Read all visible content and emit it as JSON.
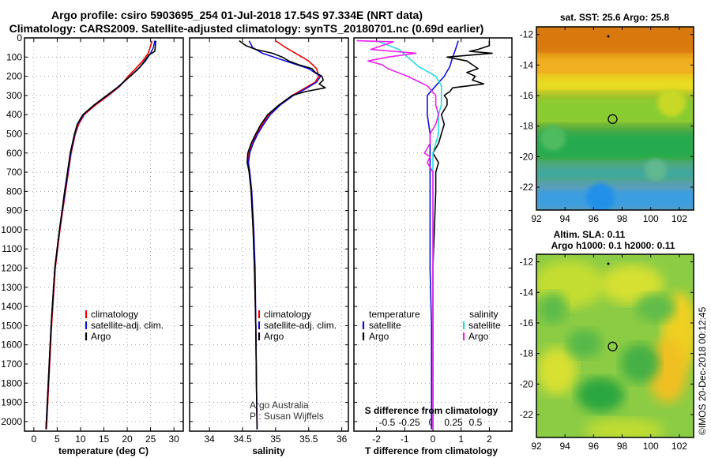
{
  "header": {
    "title_line1": "Argo profile: csiro 5903695_254 01-Jul-2018 17.54S 97.334E (NRT data)",
    "title_line2": "Climatology: CARS2009. Satellite-adjusted climatology: synTS_20180701.nc (0.69d earlier)"
  },
  "colors": {
    "climatology": "#ee0000",
    "satellite": "#1010dd",
    "argo": "#000000",
    "s_satellite": "#22dddd",
    "s_argo": "#ee22ee"
  },
  "depth_axis": {
    "ticks": [
      "0",
      "100",
      "200",
      "300",
      "400",
      "500",
      "600",
      "700",
      "800",
      "900",
      "1000",
      "1100",
      "1200",
      "1300",
      "1400",
      "1500",
      "1600",
      "1700",
      "1800",
      "1900",
      "2000"
    ],
    "range": [
      0,
      2050
    ]
  },
  "chart_data": [
    {
      "type": "line",
      "name": "temperature",
      "xlabel": "temperature (deg C)",
      "ylabel": "",
      "xlim": [
        -2,
        32
      ],
      "ylim": [
        0,
        2050
      ],
      "xticks": [
        "0",
        "5",
        "10",
        "15",
        "20",
        "25",
        "30"
      ],
      "xtick_values": [
        0,
        5,
        10,
        15,
        20,
        25,
        30
      ],
      "legend": [
        "climatology",
        "satellite-adj. clim.",
        "Argo"
      ],
      "series": [
        {
          "name": "climatology",
          "depth": [
            15,
            50,
            80,
            120,
            160,
            200,
            250,
            300,
            350,
            400,
            450,
            500,
            600,
            650,
            700,
            800,
            1000,
            1200,
            1500,
            1800,
            2040
          ],
          "values": [
            25.3,
            24.9,
            24.5,
            23.3,
            21.8,
            20.2,
            18.5,
            16.0,
            13.2,
            10.8,
            9.6,
            8.9,
            8.0,
            7.7,
            7.4,
            6.8,
            5.6,
            4.6,
            3.8,
            3.2,
            2.7
          ]
        },
        {
          "name": "satellite-adj. clim.",
          "depth": [
            15,
            50,
            80,
            120,
            160,
            200,
            250,
            300,
            350,
            400,
            450,
            500,
            600,
            650,
            700,
            800,
            1000,
            1200,
            1500,
            1800,
            2040
          ],
          "values": [
            25.9,
            25.6,
            25.0,
            23.9,
            22.4,
            20.6,
            18.4,
            15.7,
            12.9,
            10.6,
            9.4,
            8.8,
            7.9,
            7.6,
            7.3,
            6.7,
            5.5,
            4.5,
            3.7,
            3.1,
            2.6
          ]
        },
        {
          "name": "Argo",
          "depth": [
            15,
            50,
            70,
            90,
            110,
            130,
            150,
            170,
            200,
            230,
            260,
            300,
            350,
            400,
            450,
            500,
            600,
            650,
            700,
            800,
            1000,
            1200,
            1500,
            1800,
            2040
          ],
          "values": [
            26.1,
            26.0,
            25.9,
            24.6,
            24.0,
            23.4,
            22.8,
            22.0,
            20.6,
            19.2,
            17.8,
            15.6,
            12.9,
            10.5,
            9.3,
            8.7,
            7.8,
            7.5,
            7.2,
            6.6,
            5.5,
            4.5,
            3.7,
            3.1,
            2.6
          ]
        }
      ]
    },
    {
      "type": "line",
      "name": "salinity",
      "xlabel": "salinity",
      "ylabel": "",
      "xlim": [
        33.7,
        36.1
      ],
      "ylim": [
        0,
        2050
      ],
      "xticks": [
        "34",
        "34.5",
        "35",
        "35.5",
        "36"
      ],
      "xtick_values": [
        34,
        34.5,
        35,
        35.5,
        36
      ],
      "legend": [
        "climatology",
        "satellite-adj. clim.",
        "Argo"
      ],
      "annotations": [
        "Argo Australia",
        "PI: Susan Wijffels"
      ],
      "series": [
        {
          "name": "climatology",
          "depth": [
            15,
            50,
            80,
            120,
            160,
            200,
            230,
            260,
            300,
            350,
            400,
            450,
            500,
            550,
            600,
            650,
            700,
            800,
            1000,
            1200,
            1500,
            1800,
            2040
          ],
          "values": [
            35.0,
            35.15,
            35.3,
            35.5,
            35.62,
            35.65,
            35.6,
            35.45,
            35.25,
            35.05,
            34.9,
            34.8,
            34.72,
            34.65,
            34.6,
            34.58,
            34.6,
            34.63,
            34.66,
            34.68,
            34.7,
            34.71,
            34.72
          ]
        },
        {
          "name": "satellite-adj. clim.",
          "depth": [
            15,
            50,
            80,
            120,
            160,
            200,
            230,
            260,
            300,
            350,
            400,
            450,
            500,
            550,
            600,
            650,
            700,
            800,
            1000,
            1200,
            1500,
            1800,
            2040
          ],
          "values": [
            34.6,
            34.65,
            34.8,
            35.15,
            35.5,
            35.68,
            35.62,
            35.48,
            35.27,
            35.07,
            34.92,
            34.82,
            34.73,
            34.66,
            34.61,
            34.59,
            34.61,
            34.64,
            34.67,
            34.69,
            34.7,
            34.71,
            34.72
          ]
        },
        {
          "name": "Argo",
          "depth": [
            15,
            40,
            60,
            80,
            100,
            120,
            140,
            160,
            180,
            200,
            220,
            240,
            260,
            280,
            300,
            350,
            400,
            450,
            500,
            550,
            600,
            650,
            700,
            800,
            1000,
            1200,
            1500,
            1800,
            2040
          ],
          "values": [
            34.45,
            34.55,
            34.7,
            34.95,
            35.1,
            35.2,
            35.35,
            35.55,
            35.6,
            35.7,
            35.72,
            35.66,
            35.75,
            35.45,
            35.25,
            35.05,
            34.88,
            34.78,
            34.7,
            34.63,
            34.58,
            34.57,
            34.6,
            34.63,
            34.66,
            34.68,
            34.7,
            34.71,
            34.72
          ]
        }
      ]
    },
    {
      "type": "line",
      "name": "differences",
      "xlabel": "T difference from climatology",
      "ylabel": "",
      "xlim": [
        -2.8,
        2.8
      ],
      "ylim": [
        0,
        2050
      ],
      "xticks": [
        "-2",
        "-1",
        "0",
        "1",
        "2"
      ],
      "xtick_values": [
        -2,
        -1,
        0,
        1,
        2
      ],
      "top_label": "S difference from climatology",
      "s_ticks": [
        "-0.5",
        "-0.25",
        "0",
        "0.25",
        "0.5"
      ],
      "s_tick_values": [
        -0.5,
        -0.25,
        0,
        0.25,
        0.5
      ],
      "legend_left": {
        "heading": "temperature",
        "items": [
          "satellite",
          "Argo"
        ]
      },
      "legend_right": {
        "heading": "salinity",
        "items": [
          "satellite",
          "Argo"
        ]
      },
      "series": [
        {
          "name": "temperature satellite",
          "depth": [
            15,
            60,
            100,
            150,
            200,
            250,
            300,
            350,
            400,
            500,
            600,
            700,
            900,
            1200,
            1500,
            1800,
            2040
          ],
          "values": [
            0.9,
            0.8,
            0.7,
            0.6,
            0.4,
            0.1,
            -0.2,
            -0.2,
            -0.2,
            -0.1,
            -0.1,
            -0.1,
            -0.1,
            -0.1,
            -0.05,
            -0.05,
            -0.05
          ]
        },
        {
          "name": "temperature Argo",
          "depth": [
            15,
            40,
            60,
            70,
            80,
            100,
            120,
            140,
            160,
            180,
            200,
            220,
            240,
            260,
            280,
            300,
            320,
            350,
            400,
            450,
            500,
            550,
            600,
            650,
            700,
            800,
            1000,
            1200,
            1500,
            1800,
            2040
          ],
          "values": [
            2.0,
            2.0,
            1.6,
            1.3,
            2.1,
            0.5,
            1.2,
            1.4,
            1.6,
            1.2,
            1.5,
            1.4,
            1.8,
            0.7,
            0.6,
            0.4,
            0.5,
            0.5,
            0.3,
            0.4,
            0.3,
            0.2,
            0.0,
            0.2,
            0.1,
            0.1,
            0.05,
            0.0,
            0.0,
            0.0,
            0.0
          ]
        },
        {
          "name": "salinity satellite",
          "depth": [
            15,
            60,
            100,
            150,
            200,
            250,
            300,
            350,
            400,
            500,
            600,
            700,
            900,
            1200,
            1500,
            1800,
            2040
          ],
          "values": [
            -2.0,
            -1.2,
            -0.9,
            -0.5,
            0.1,
            0.3,
            0.3,
            0.3,
            0.2,
            0.2,
            0.0,
            0.0,
            0.0,
            0.0,
            0.0,
            0.0,
            0.0
          ]
        },
        {
          "name": "salinity Argo",
          "depth": [
            15,
            20,
            40,
            60,
            80,
            100,
            120,
            140,
            160,
            200,
            250,
            300,
            350,
            400,
            450,
            500,
            550,
            600,
            620,
            650,
            700,
            800,
            1000,
            1200,
            1500,
            1800,
            2040
          ],
          "values": [
            -2.7,
            -1.4,
            -1.8,
            -2.2,
            -0.6,
            -1.6,
            -2.3,
            -1.8,
            -1.6,
            -0.9,
            -0.2,
            0.1,
            0.1,
            0.2,
            0.1,
            -0.1,
            -0.1,
            -0.3,
            -0.1,
            -0.2,
            0.0,
            0.0,
            0.0,
            0.0,
            0.0,
            0.0,
            0.0
          ]
        }
      ]
    },
    {
      "type": "heatmap",
      "name": "sst_map",
      "title": "sat. SST: 25.6 Argo: 25.8",
      "xlim": [
        92,
        103
      ],
      "ylim": [
        -23.5,
        -11.5
      ],
      "xticks": [
        "92",
        "94",
        "96",
        "98",
        "100",
        "102"
      ],
      "xtick_values": [
        92,
        94,
        96,
        98,
        100,
        102
      ],
      "yticks": [
        "-12",
        "-14",
        "-16",
        "-18",
        "-20",
        "-22"
      ],
      "ytick_values": [
        -12,
        -14,
        -16,
        -18,
        -20,
        -22
      ],
      "marker": {
        "lon": 97.334,
        "lat": -17.54
      }
    },
    {
      "type": "heatmap",
      "name": "sla_map",
      "title_line1": "Altim. SLA: 0.11",
      "title_line2": "Argo h1000: 0.1 h2000: 0.11",
      "xlim": [
        92,
        103
      ],
      "ylim": [
        -23.5,
        -11.5
      ],
      "xticks": [
        "92",
        "94",
        "96",
        "98",
        "100",
        "102"
      ],
      "xtick_values": [
        92,
        94,
        96,
        98,
        100,
        102
      ],
      "yticks": [
        "-12",
        "-14",
        "-16",
        "-18",
        "-20",
        "-22"
      ],
      "ytick_values": [
        -12,
        -14,
        -16,
        -18,
        -20,
        -22
      ],
      "marker": {
        "lon": 97.334,
        "lat": -17.54
      }
    }
  ],
  "footer": {
    "credit": "©IMOS 20-Dec-2018 00:12:45"
  }
}
